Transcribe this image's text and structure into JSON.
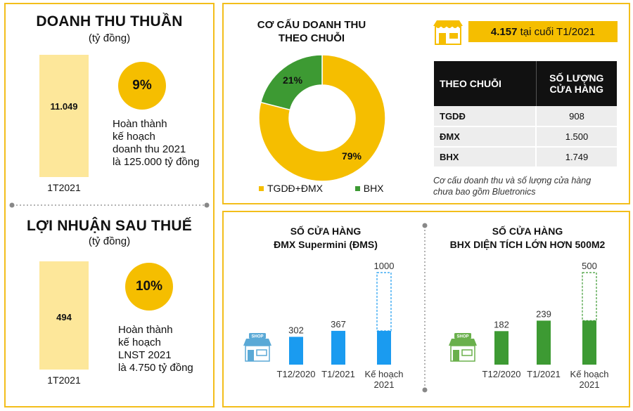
{
  "revenue": {
    "title": "DOANH THU THUẦN",
    "unit": "(tỷ đồng)",
    "value": "11.049",
    "period": "1T2021",
    "completion_pct": "9%",
    "completion_ratio": 0.09,
    "note": [
      "Hoàn thành",
      "kế hoạch",
      "doanh thu 2021",
      "là 125.000 tỷ đồng"
    ]
  },
  "profit": {
    "title": "LỢI NHUẬN SAU THUẾ",
    "unit": "(tỷ đồng)",
    "value": "494",
    "period": "1T2021",
    "completion_pct": "10%",
    "completion_ratio": 0.1,
    "note": [
      "Hoàn thành",
      "kế hoạch",
      "LNST 2021",
      "là 4.750 tỷ đồng"
    ]
  },
  "revenue_structure": {
    "title_lines": [
      "CƠ CẤU DOANH THU",
      "THEO CHUỖI"
    ]
  },
  "stores": {
    "total_value": "4.157",
    "total_suffix": "tại cuối T1/2021",
    "header_chain": "THEO CHUỖI",
    "header_count": [
      "SỐ LƯỢNG",
      "CỬA HÀNG"
    ],
    "rows": [
      {
        "name": "TGDĐ",
        "count": "908"
      },
      {
        "name": "ĐMX",
        "count": "1.500"
      },
      {
        "name": "BHX",
        "count": "1.749"
      }
    ],
    "footnote": [
      "Cơ cấu doanh thu và số lượng cửa hàng",
      "chưa bao gồm Bluetronics"
    ]
  },
  "icons": {
    "store": "store-icon",
    "shop": "shop-icon"
  },
  "chart_data": [
    {
      "type": "pie",
      "title": "CƠ CẤU DOANH THU THEO CHUỖI",
      "categories": [
        "TGDĐ+ĐMX",
        "BHX"
      ],
      "values": [
        79,
        21
      ],
      "labels": [
        "79%",
        "21%"
      ],
      "colors": [
        "#f5be00",
        "#3d9a33"
      ],
      "legend_position": "bottom"
    },
    {
      "type": "bar",
      "title": "SỐ CỬA HÀNG ĐMX Supermini (ĐMS)",
      "title_lines": [
        "SỐ CỬA HÀNG",
        "ĐMX Supermini (ĐMS)"
      ],
      "categories": [
        [
          "T12/2020"
        ],
        [
          "T1/2021"
        ],
        [
          "Kế hoạch",
          "2021"
        ]
      ],
      "values": [
        302,
        367,
        1000
      ],
      "actual_of_plan": 367,
      "color": "#1a9bf0",
      "ylim": [
        0,
        1000
      ]
    },
    {
      "type": "bar",
      "title": "SỐ CỬA HÀNG BHX DIỆN TÍCH LỚN HƠN 500M2",
      "title_lines": [
        "SỐ CỬA HÀNG",
        "BHX DIỆN TÍCH LỚN HƠN 500M2"
      ],
      "categories": [
        [
          "T12/2020"
        ],
        [
          "T1/2021"
        ],
        [
          "Kế hoạch",
          "2021"
        ]
      ],
      "values": [
        182,
        239,
        500
      ],
      "actual_of_plan": 239,
      "color": "#3d9a33",
      "ylim": [
        0,
        500
      ]
    }
  ]
}
